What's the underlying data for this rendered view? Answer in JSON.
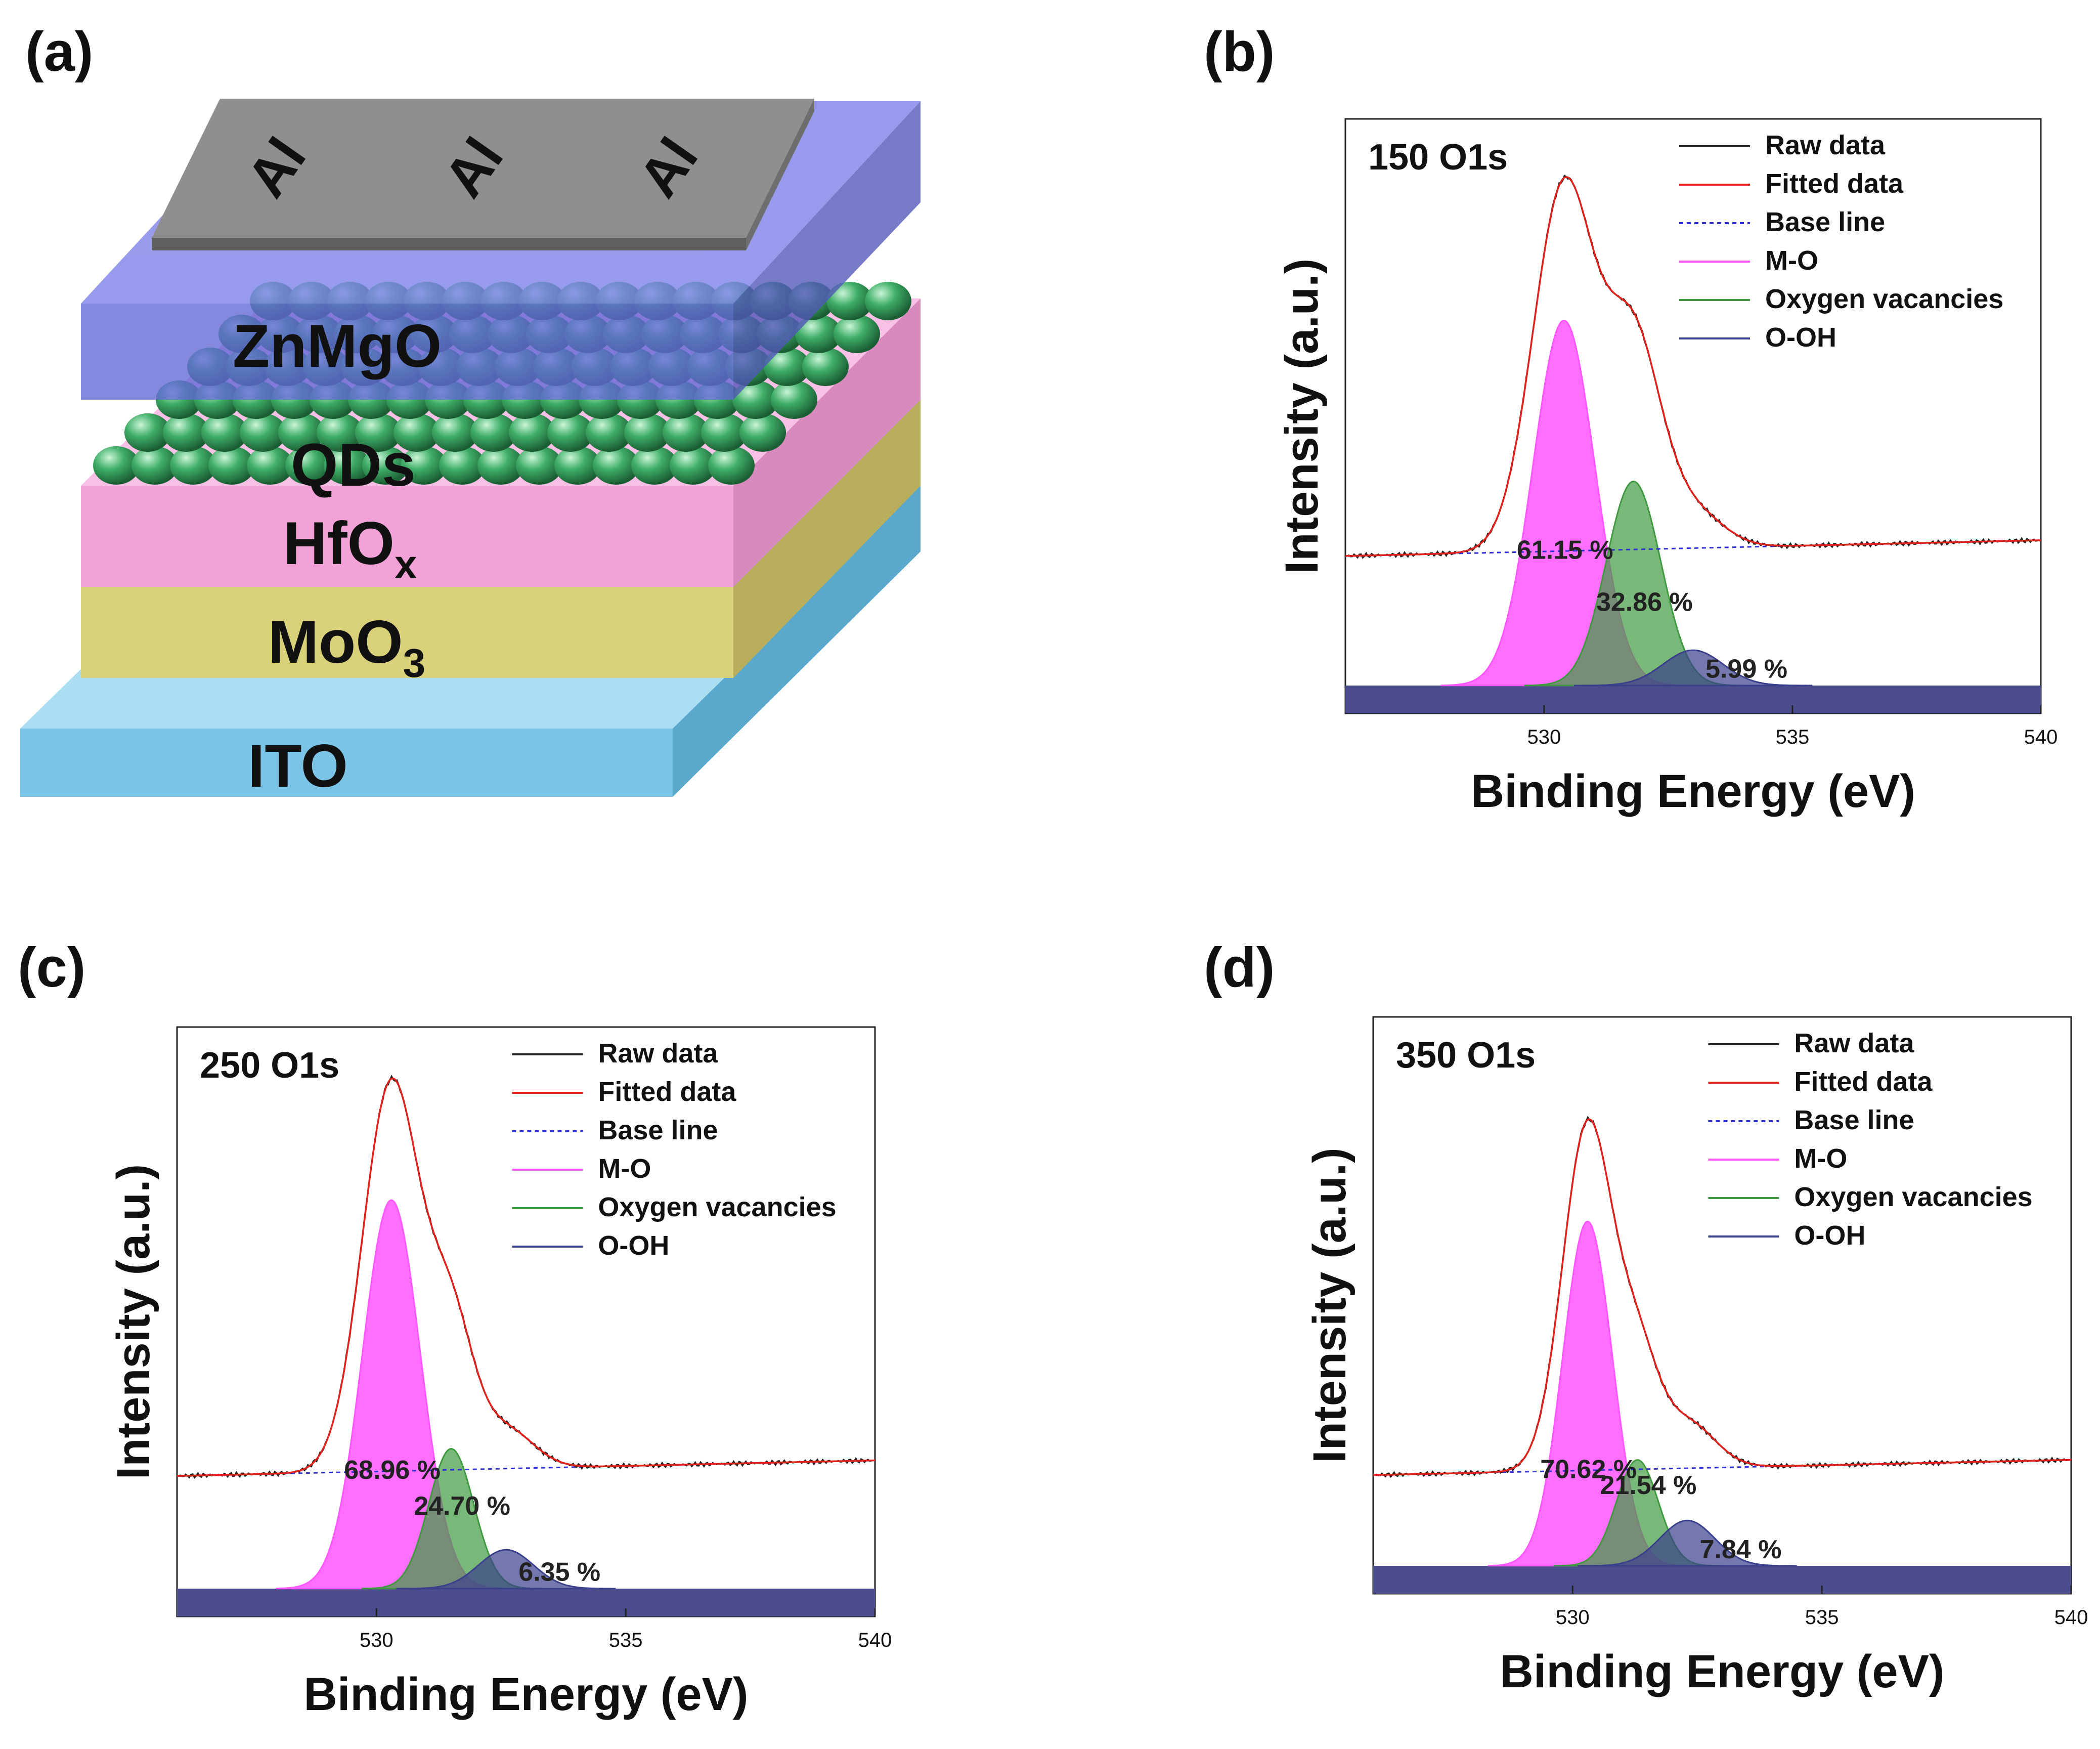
{
  "panel_labels": [
    "(a)",
    "(b)",
    "(c)",
    "(d)"
  ],
  "device": {
    "electrode_label": "Al",
    "layers": [
      "ZnMgO",
      "QDs",
      "HfO",
      "MoO",
      "ITO"
    ],
    "hfox_subscript": "x",
    "moo3_subscript": "3",
    "colors": {
      "ito": "#7cc4e6",
      "moo3": "#d9d07a",
      "hfox": "#f2a2d6",
      "znmgo": "#6f73de",
      "qds": "#3fae67",
      "al": "#8c8c8c"
    }
  },
  "chart_data": [
    {
      "type": "line",
      "title": "150 O1s",
      "xlabel": "Binding Energy (eV)",
      "ylabel": "Intensity (a.u.)",
      "xlim": [
        526,
        540
      ],
      "ylim": [
        0,
        1.0
      ],
      "xticks": [
        530,
        535,
        540
      ],
      "legend": [
        "Raw data",
        "Fitted data",
        "Base line",
        "M-O",
        "Oxygen vacancies",
        "O-OH"
      ],
      "legend_position": "top-right",
      "baseline": {
        "start": 0.33,
        "end": 0.37
      },
      "peaks": [
        {
          "name": "M-O",
          "center": 530.4,
          "width": 0.62,
          "height": 0.93,
          "percent": "61.15 %"
        },
        {
          "name": "Oxygen vacancies",
          "center": 531.8,
          "width": 0.55,
          "height": 0.52,
          "percent": "32.86 %"
        },
        {
          "name": "O-OH",
          "center": 533.0,
          "width": 0.6,
          "height": 0.09,
          "percent": "5.99 %"
        }
      ]
    },
    {
      "type": "line",
      "title": "250 O1s",
      "xlabel": "Binding Energy (eV)",
      "ylabel": "Intensity (a.u.)",
      "xlim": [
        526,
        540
      ],
      "ylim": [
        0,
        1.0
      ],
      "xticks": [
        530,
        535,
        540
      ],
      "legend": [
        "Raw data",
        "Fitted data",
        "Base line",
        "M-O",
        "Oxygen vacancies",
        "O-OH"
      ],
      "legend_position": "top-right",
      "baseline": {
        "start": 0.29,
        "end": 0.33
      },
      "peaks": [
        {
          "name": "M-O",
          "center": 530.3,
          "width": 0.58,
          "height": 1.0,
          "percent": "68.96 %"
        },
        {
          "name": "Oxygen vacancies",
          "center": 531.5,
          "width": 0.45,
          "height": 0.36,
          "percent": "24.70 %"
        },
        {
          "name": "O-OH",
          "center": 532.6,
          "width": 0.55,
          "height": 0.1,
          "percent": "6.35 %"
        }
      ]
    },
    {
      "type": "line",
      "title": "350 O1s",
      "xlabel": "Binding Energy (eV)",
      "ylabel": "Intensity (a.u.)",
      "xlim": [
        526,
        540
      ],
      "ylim": [
        0,
        1.0
      ],
      "xticks": [
        530,
        535,
        540
      ],
      "legend": [
        "Raw data",
        "Fitted data",
        "Base line",
        "M-O",
        "Oxygen vacancies",
        "O-OH"
      ],
      "legend_position": "top-right",
      "baseline": {
        "start": 0.24,
        "end": 0.28
      },
      "peaks": [
        {
          "name": "M-O",
          "center": 530.3,
          "width": 0.5,
          "height": 0.91,
          "percent": "70.62 %"
        },
        {
          "name": "Oxygen vacancies",
          "center": 531.3,
          "width": 0.42,
          "height": 0.28,
          "percent": "21.54 %"
        },
        {
          "name": "O-OH",
          "center": 532.3,
          "width": 0.55,
          "height": 0.12,
          "percent": "7.84 %"
        }
      ]
    }
  ]
}
